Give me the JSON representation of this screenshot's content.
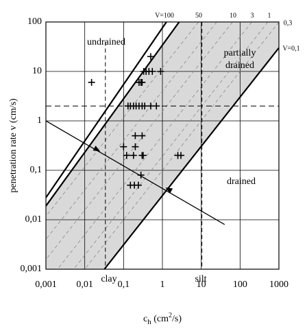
{
  "chart_data": {
    "type": "scatter",
    "x_label": {
      "base": "c",
      "sub": "h",
      "rest": " (cm",
      "sup": "2",
      "end": "/s)"
    },
    "y_label": "penetration rate v (cm/s)",
    "log_x": true,
    "log_y": true,
    "grid": true,
    "xlim": [
      0.001,
      1000
    ],
    "xticks": [
      {
        "value": 0.001,
        "label": "0,001"
      },
      {
        "value": 0.01,
        "label": "0,01"
      },
      {
        "value": 0.1,
        "label": "0,1"
      },
      1,
      10,
      100,
      1000
    ],
    "ylim": [
      0.001,
      100
    ],
    "yticks": [
      {
        "value": 0.001,
        "label": "0,001"
      },
      {
        "value": 0.01,
        "label": "0,01"
      },
      {
        "value": 0.1,
        "label": "0,1"
      },
      1,
      10,
      100
    ],
    "x": [
      0.015,
      0.5,
      0.33,
      0.38,
      0.45,
      0.55,
      0.9,
      0.25,
      0.28,
      0.3,
      0.13,
      0.15,
      0.18,
      0.21,
      0.25,
      0.3,
      0.35,
      0.5,
      0.7,
      0.2,
      0.3,
      0.1,
      0.2,
      0.12,
      0.18,
      0.3,
      0.32,
      2.5,
      3,
      0.28,
      0.15,
      0.19,
      0.24
    ],
    "values": [
      6,
      20,
      10,
      10,
      10,
      10,
      10,
      6,
      6,
      6,
      2,
      2,
      2,
      2,
      2,
      2,
      2,
      2,
      2,
      0.5,
      0.5,
      0.3,
      0.3,
      0.2,
      0.2,
      0.2,
      0.2,
      0.2,
      0.2,
      0.08,
      0.05,
      0.05,
      0.05
    ],
    "color": "#000000",
    "band": [
      [
        0.001,
        0.019
      ],
      [
        2.7,
        100
      ],
      [
        1000,
        100
      ],
      [
        1000,
        30
      ],
      [
        0.032,
        0.001
      ],
      [
        0.001,
        0.001
      ]
    ],
    "band_color": "#d9d9d9",
    "thick_lines": [
      [
        [
          0.001,
          0.028
        ],
        [
          1.27,
          100
        ]
      ],
      [
        [
          0.001,
          0.019
        ],
        [
          2.7,
          100
        ]
      ],
      [
        [
          0.032,
          0.001
        ],
        [
          1000,
          30
        ]
      ]
    ],
    "dashed_lines": [
      [
        [
          8.5,
          100
        ],
        [
          8.5e-05,
          0.001
        ]
      ],
      [
        [
          25,
          100
        ],
        [
          0.00025,
          0.001
        ]
      ],
      [
        [
          64,
          100
        ],
        [
          0.00064,
          0.001
        ]
      ],
      [
        [
          200,
          100
        ],
        [
          0.002,
          0.001
        ]
      ],
      [
        [
          520,
          100
        ],
        [
          0.0052,
          0.001
        ]
      ],
      [
        [
          1000,
          100
        ],
        [
          0.01,
          0.001
        ]
      ]
    ],
    "clay_line": [
      [
        0.034,
        40
      ],
      [
        0.034,
        0.001
      ]
    ],
    "silt_line": [
      [
        10.4,
        100
      ],
      [
        10.4,
        0.001
      ]
    ],
    "v_line": [
      [
        0.001,
        2
      ],
      [
        1000,
        2
      ]
    ],
    "arrow_line": [
      [
        0.001,
        1
      ],
      [
        40,
        0.008
      ]
    ],
    "arrow_points": [
      [
        0.025,
        0.24
      ],
      [
        1.2,
        0.045
      ]
    ],
    "annotations": {
      "undrained": "undrained",
      "partially": "partially",
      "drained_word": "drained",
      "drained": "drained",
      "clay": "clay",
      "silt": "silt",
      "v100": "V=100",
      "v50": "50",
      "v10": "10",
      "v3": "3",
      "v1": "1",
      "v03": "0,3",
      "v01": "V=0,1"
    }
  }
}
